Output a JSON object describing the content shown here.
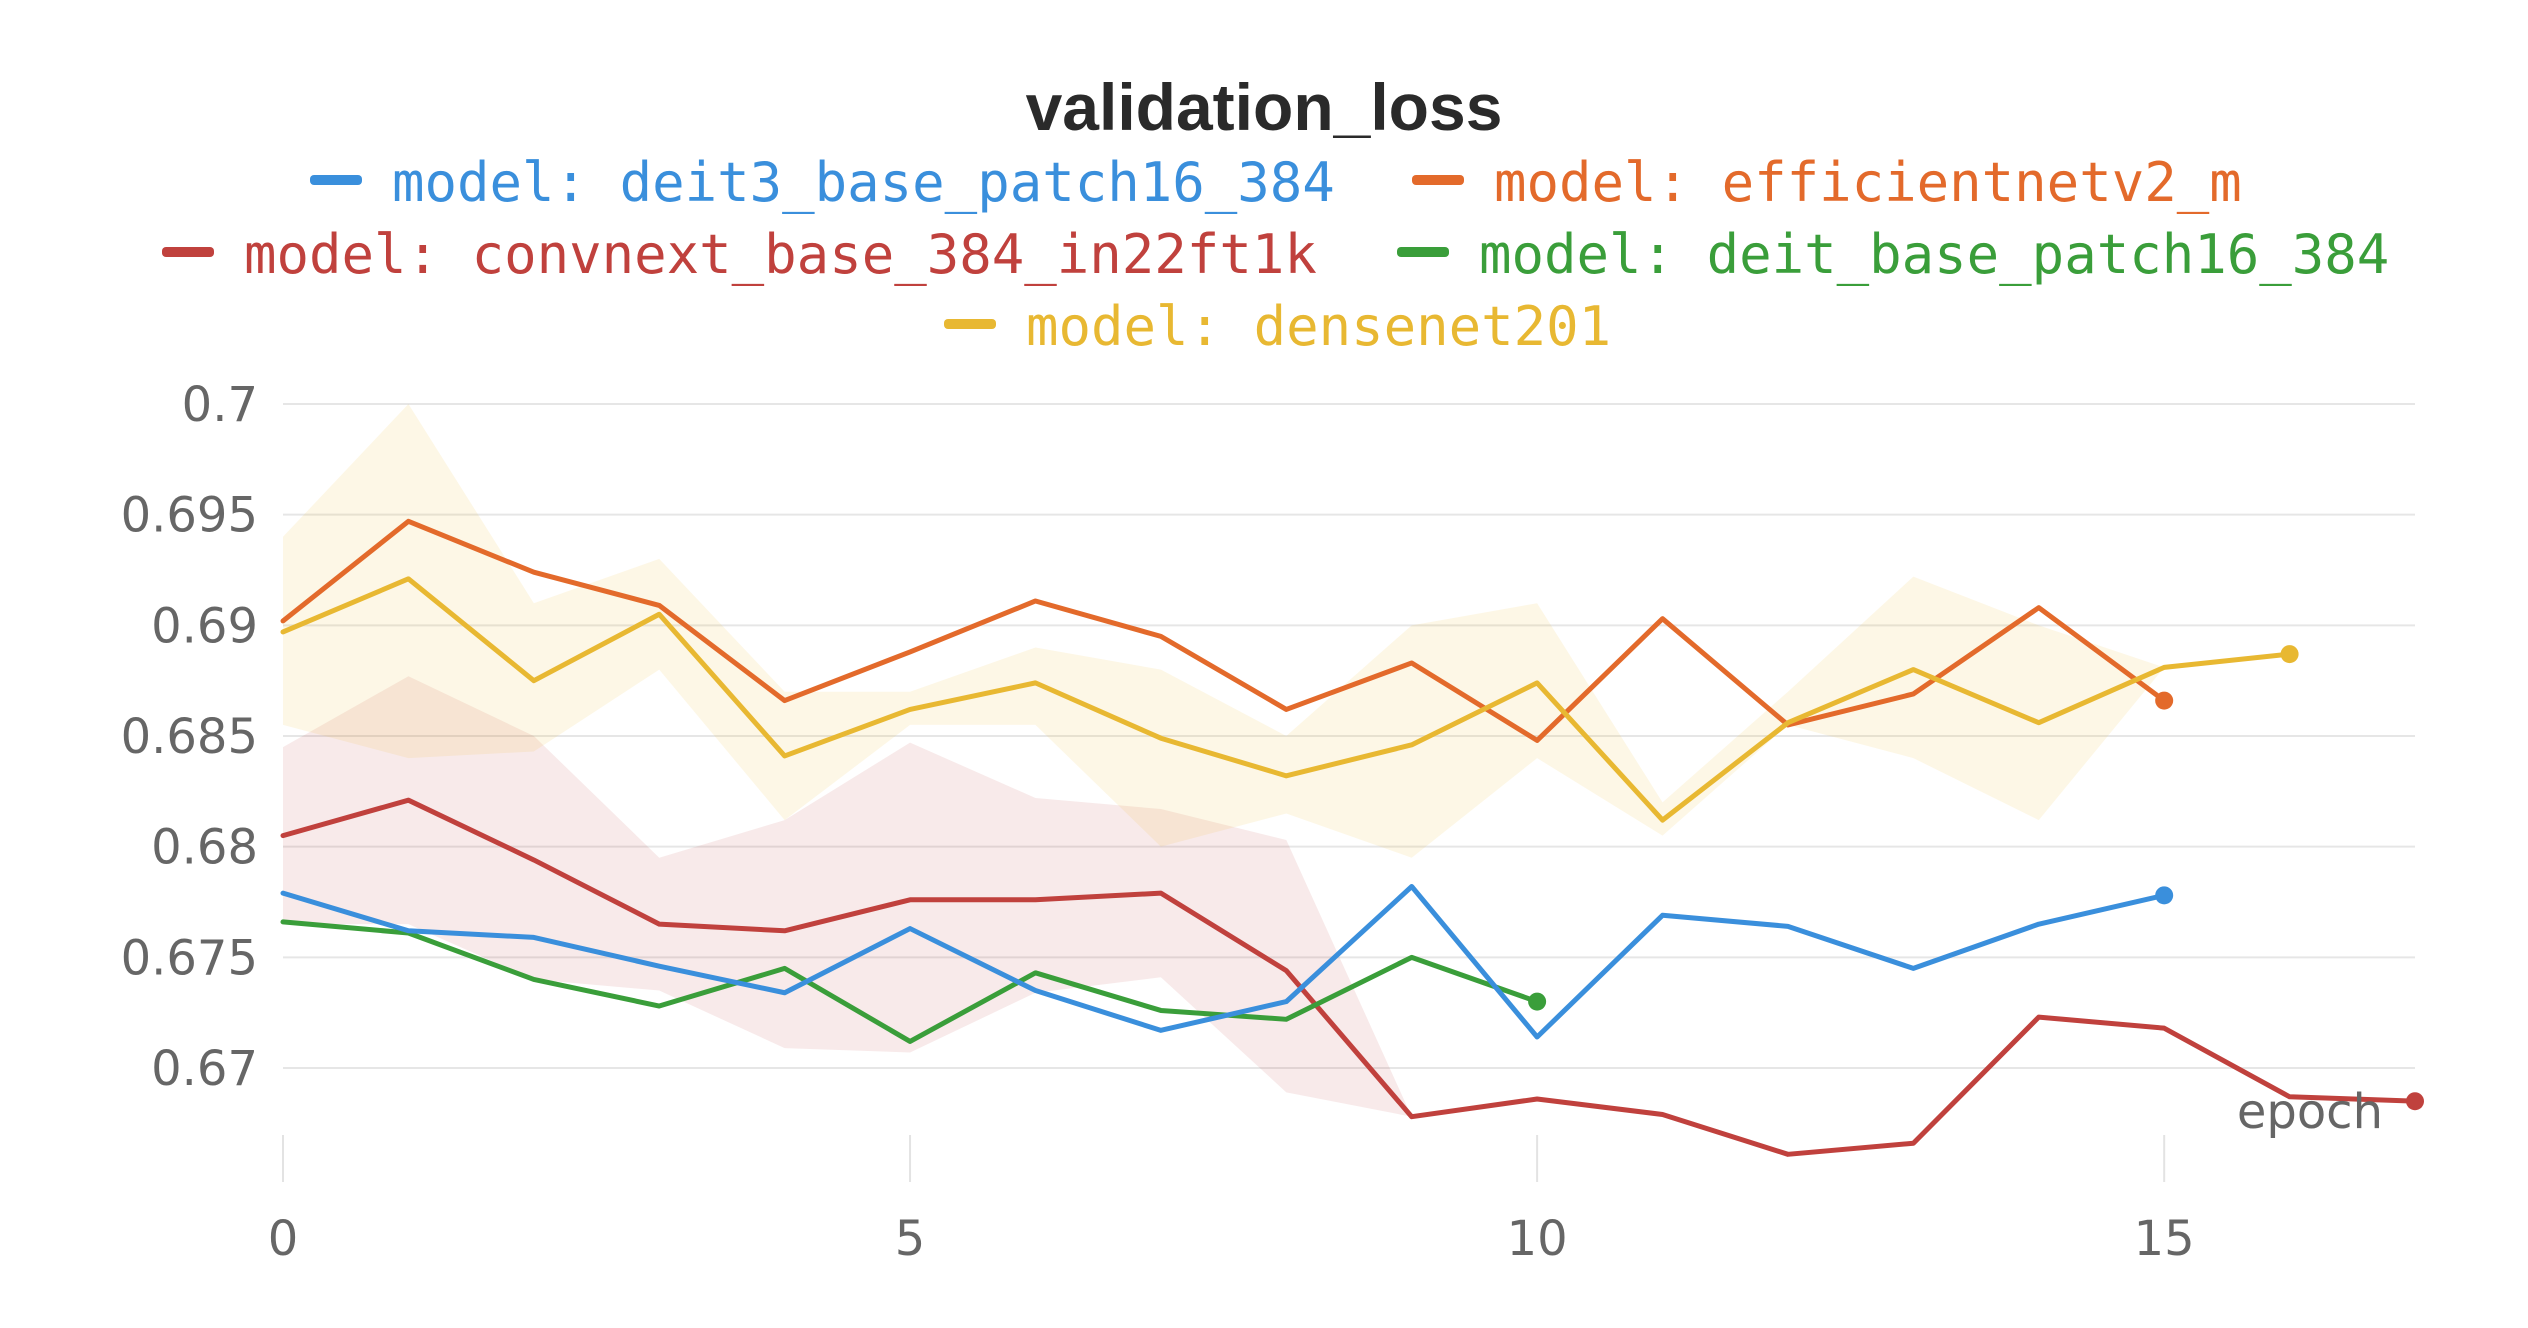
{
  "chart_data": {
    "type": "line",
    "title": "validation_loss",
    "xlabel": "epoch",
    "ylabel": "",
    "xlim": [
      0,
      17
    ],
    "ylim": [
      0.6652,
      0.7
    ],
    "x_ticks": [
      0,
      5,
      10,
      15
    ],
    "y_ticks": [
      0.67,
      0.675,
      0.68,
      0.685,
      0.69,
      0.695,
      0.7
    ],
    "x_tick_labels": [
      "0",
      "5",
      "10",
      "15"
    ],
    "y_tick_labels": [
      "0.67",
      "0.675",
      "0.68",
      "0.685",
      "0.69",
      "0.695",
      "0.7"
    ],
    "legend_position": "top",
    "grid": true,
    "series": [
      {
        "name": "model: deit3_base_patch16_384",
        "color": "#3a8fdc",
        "x": [
          0,
          1,
          2,
          3,
          4,
          5,
          6,
          7,
          8,
          9,
          10,
          11,
          12,
          13,
          14,
          15
        ],
        "values": [
          0.6779,
          0.6762,
          0.6759,
          0.6746,
          0.6734,
          0.6763,
          0.6735,
          0.6717,
          0.673,
          0.6782,
          0.6714,
          0.6769,
          0.6764,
          0.6745,
          0.6765,
          0.6778
        ]
      },
      {
        "name": "model: efficientnetv2_m",
        "color": "#e36a2b",
        "x": [
          0,
          1,
          2,
          3,
          4,
          5,
          6,
          7,
          8,
          9,
          10,
          11,
          12,
          13,
          14,
          15
        ],
        "values": [
          0.6902,
          0.6947,
          0.6924,
          0.6909,
          0.6866,
          0.6888,
          0.6911,
          0.6895,
          0.6862,
          0.6883,
          0.6848,
          0.6903,
          0.6855,
          0.6869,
          0.6908,
          0.6866
        ]
      },
      {
        "name": "model: convnext_base_384_in22ft1k",
        "color": "#c0413d",
        "x": [
          0,
          1,
          2,
          3,
          4,
          5,
          6,
          7,
          8,
          9,
          10,
          11,
          12,
          13,
          14,
          15,
          16,
          17
        ],
        "values": [
          0.6805,
          0.6821,
          0.6794,
          0.6765,
          0.6762,
          0.6776,
          0.6776,
          0.6779,
          0.6744,
          0.6678,
          0.6686,
          0.6679,
          0.6661,
          0.6666,
          0.6723,
          0.6718,
          0.6687,
          0.6685
        ],
        "band_upper": [
          0.6845,
          0.6877,
          0.685,
          0.6795,
          0.6812,
          0.6847,
          0.6822,
          0.6817,
          0.6803,
          0.6678
        ],
        "band_lower": [
          0.6765,
          0.6765,
          0.674,
          0.6735,
          0.6709,
          0.6707,
          0.6734,
          0.6741,
          0.6689,
          0.6678
        ]
      },
      {
        "name": "model: deit_base_patch16_384",
        "color": "#3a9e3a",
        "x": [
          0,
          1,
          2,
          3,
          4,
          5,
          6,
          7,
          8,
          9,
          10
        ],
        "values": [
          0.6766,
          0.6761,
          0.674,
          0.6728,
          0.6745,
          0.6712,
          0.6743,
          0.6726,
          0.6722,
          0.675,
          0.673
        ]
      },
      {
        "name": "model: densenet201",
        "color": "#e8b832",
        "x": [
          0,
          1,
          2,
          3,
          4,
          5,
          6,
          7,
          8,
          9,
          10,
          11,
          12,
          13,
          14,
          15,
          16
        ],
        "values": [
          0.6897,
          0.6921,
          0.6875,
          0.6905,
          0.6841,
          0.6862,
          0.6874,
          0.6849,
          0.6832,
          0.6846,
          0.6874,
          0.6812,
          0.6856,
          0.688,
          0.6856,
          0.6881,
          0.6887
        ],
        "band_upper": [
          0.694,
          0.7,
          0.691,
          0.693,
          0.687,
          0.687,
          0.689,
          0.688,
          0.685,
          0.69,
          0.691,
          0.682,
          0.687,
          0.6922,
          0.69,
          0.6881
        ],
        "band_lower": [
          0.6855,
          0.684,
          0.6843,
          0.688,
          0.6812,
          0.6855,
          0.6855,
          0.68,
          0.6815,
          0.6795,
          0.684,
          0.6805,
          0.6855,
          0.684,
          0.6812,
          0.6881
        ]
      }
    ]
  }
}
